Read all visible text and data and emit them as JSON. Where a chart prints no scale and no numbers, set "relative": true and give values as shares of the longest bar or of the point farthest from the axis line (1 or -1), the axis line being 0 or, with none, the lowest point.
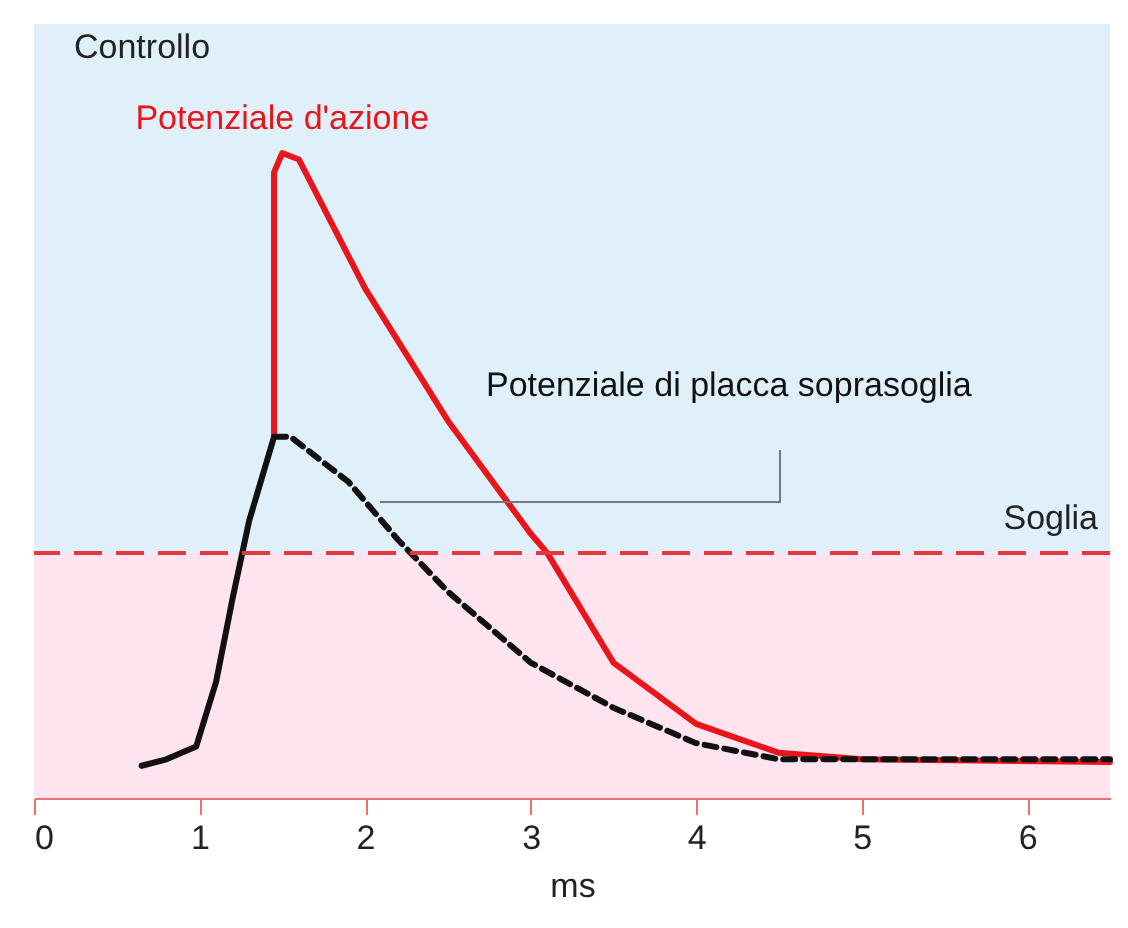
{
  "chart_data": {
    "type": "line",
    "relative": true,
    "xlabel": "ms",
    "xlim": [
      0,
      6.5
    ],
    "xticks": [
      0,
      1,
      2,
      3,
      4,
      5,
      6
    ],
    "grid": false,
    "legend": false,
    "annotations": [
      "Controllo"
    ],
    "bands": [
      {
        "axis": "y",
        "from": 0,
        "to": 0.38,
        "color": "#fde4ee"
      },
      {
        "axis": "y",
        "from": 0.38,
        "to": 1.2,
        "color": "#dff0fb"
      }
    ],
    "ref_lines": [
      {
        "axis": "y",
        "value": 0.38,
        "label": "Soglia",
        "color": "#e8383d",
        "line_style": "dashed"
      }
    ],
    "series": [
      {
        "color": "#111111",
        "line_style": "solid",
        "x": [
          0.65,
          0.8,
          0.98,
          1.1,
          1.2,
          1.3,
          1.45
        ],
        "values": [
          0.05,
          0.06,
          0.08,
          0.18,
          0.31,
          0.43,
          0.56
        ]
      },
      {
        "name": "Potenziale d'azione",
        "color": "#e8161b",
        "line_style": "solid",
        "x": [
          1.45,
          1.45,
          1.5,
          1.6,
          2.0,
          2.5,
          3.0,
          3.1,
          3.5,
          4.0,
          4.5,
          5.0,
          6.5
        ],
        "values": [
          0.56,
          0.97,
          1.0,
          0.99,
          0.79,
          0.585,
          0.41,
          0.38,
          0.21,
          0.115,
          0.07,
          0.06,
          0.056
        ]
      },
      {
        "name": "Potenziale di placca soprasoglia",
        "color": "#111111",
        "line_style": "dashed",
        "x": [
          1.45,
          1.55,
          1.9,
          2.2,
          2.5,
          3.0,
          3.5,
          4.0,
          4.5,
          5.0,
          6.5
        ],
        "values": [
          0.56,
          0.56,
          0.49,
          0.4,
          0.32,
          0.21,
          0.14,
          0.085,
          0.06,
          0.06,
          0.06
        ]
      }
    ]
  }
}
